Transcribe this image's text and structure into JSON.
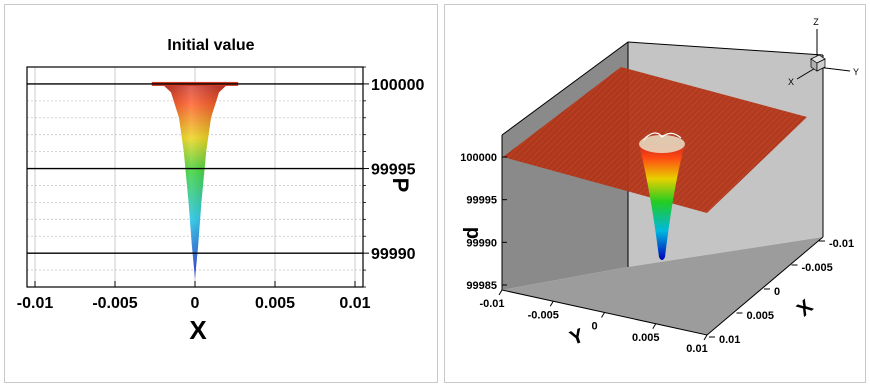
{
  "chart_data": [
    {
      "type": "line",
      "title": "Initial value",
      "xlabel": "X",
      "ylabel": "P",
      "xlim": [
        -0.0105,
        0.0105
      ],
      "ylim": [
        99988,
        100001
      ],
      "x_ticks": [
        -0.01,
        -0.005,
        0,
        0.005,
        0.01
      ],
      "x_tick_labels": [
        "-0.01",
        "-0.005",
        "0",
        "0.005",
        "0.01"
      ],
      "y_ticks": [
        99990,
        99995,
        100000
      ],
      "y_tick_labels": [
        "99990",
        "99995",
        "100000"
      ],
      "grid": true,
      "series": [
        {
          "x": [
            -0.0025,
            -0.002,
            -0.0015,
            -0.001,
            -0.0007,
            -0.0004,
            -0.0002,
            0,
            0.0002,
            0.0004,
            0.0007,
            0.001,
            0.0015,
            0.002,
            0.0025
          ],
          "y": [
            100000,
            99999.95,
            99999.5,
            99998,
            99996,
            99993,
            99990.5,
            99988.5,
            99990.5,
            99993,
            99996,
            99998,
            99999.5,
            99999.95,
            100000
          ]
        }
      ],
      "colormap": [
        "#0000cc",
        "#00aaff",
        "#00cc44",
        "#cccc00",
        "#ff6600",
        "#ff3300",
        "#c8281e"
      ]
    },
    {
      "type": "surface3d",
      "xlabel": "X",
      "ylabel": "Y",
      "zlabel": "p",
      "x_tick_labels": [
        "-0.01",
        "-0.005",
        "0",
        "0.005",
        "0.01"
      ],
      "y_tick_labels": [
        "-0.01",
        "-0.005",
        "0",
        "0.005",
        "0.01"
      ],
      "z_tick_labels": [
        "100000",
        "99995",
        "99990",
        "99985"
      ],
      "zlim": [
        99985,
        100000
      ],
      "plane_color": "#b8381a",
      "axis_triad": {
        "x": "X",
        "y": "Y",
        "z": "Z"
      }
    }
  ]
}
